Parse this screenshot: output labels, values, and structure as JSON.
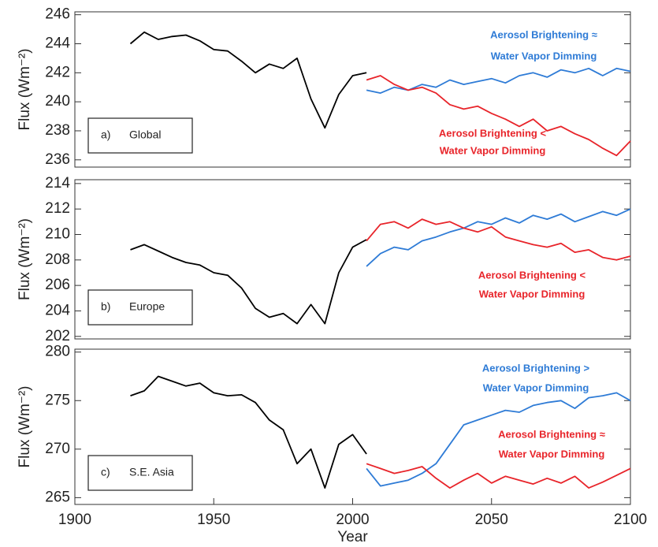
{
  "chart_data": [
    {
      "type": "line",
      "y_label": "Flux (Wm⁻²)",
      "panel_label": "a)",
      "region": "Global",
      "xlim": [
        1900,
        2100
      ],
      "ylim": [
        235.5,
        246.2
      ],
      "yticks": [
        236,
        238,
        240,
        242,
        244,
        246
      ],
      "x": [
        1920,
        1925,
        1930,
        1935,
        1940,
        1945,
        1950,
        1955,
        1960,
        1965,
        1970,
        1975,
        1980,
        1985,
        1990,
        1995,
        2000,
        2005,
        2010,
        2015,
        2020,
        2025,
        2030,
        2035,
        2040,
        2045,
        2050,
        2055,
        2060,
        2065,
        2070,
        2075,
        2080,
        2085,
        2090,
        2095,
        2100
      ],
      "series": [
        {
          "color": "#000000",
          "values": [
            244.0,
            244.8,
            244.3,
            244.5,
            244.6,
            244.2,
            243.6,
            243.5,
            242.8,
            242.0,
            242.6,
            242.3,
            243.0,
            240.2,
            238.2,
            240.5,
            241.8,
            242.0,
            null,
            null,
            null,
            null,
            null,
            null,
            null,
            null,
            null,
            null,
            null,
            null,
            null,
            null,
            null,
            null,
            null,
            null,
            null
          ]
        },
        {
          "color": "#2e7bd6",
          "values": [
            null,
            null,
            null,
            null,
            null,
            null,
            null,
            null,
            null,
            null,
            null,
            null,
            null,
            null,
            null,
            null,
            null,
            240.8,
            240.6,
            241.0,
            240.8,
            241.2,
            241.0,
            241.5,
            241.2,
            241.4,
            241.6,
            241.3,
            241.8,
            242.0,
            241.7,
            242.2,
            242.0,
            242.3,
            241.8,
            242.3,
            242.1
          ]
        },
        {
          "color": "#e8242a",
          "values": [
            null,
            null,
            null,
            null,
            null,
            null,
            null,
            null,
            null,
            null,
            null,
            null,
            null,
            null,
            null,
            null,
            null,
            241.5,
            241.8,
            241.2,
            240.8,
            241.0,
            240.6,
            239.8,
            239.5,
            239.7,
            239.2,
            238.8,
            238.3,
            238.8,
            238.0,
            238.3,
            237.8,
            237.4,
            236.8,
            236.3,
            237.3
          ]
        }
      ],
      "annotations": [
        {
          "text": "Aerosol Brightening ≈",
          "color": "#2e7bd6"
        },
        {
          "text": "Water Vapor Dimming",
          "color": "#2e7bd6"
        },
        {
          "text": "Aerosol Brightening <",
          "color": "#e8242a"
        },
        {
          "text": "Water Vapor Dimming",
          "color": "#e8242a"
        }
      ]
    },
    {
      "type": "line",
      "y_label": "Flux (Wm⁻²)",
      "panel_label": "b)",
      "region": "Europe",
      "xlim": [
        1900,
        2100
      ],
      "ylim": [
        201.8,
        214.3
      ],
      "yticks": [
        202,
        204,
        206,
        208,
        210,
        212,
        214
      ],
      "x": [
        1920,
        1925,
        1930,
        1935,
        1940,
        1945,
        1950,
        1955,
        1960,
        1965,
        1970,
        1975,
        1980,
        1985,
        1990,
        1995,
        2000,
        2005,
        2010,
        2015,
        2020,
        2025,
        2030,
        2035,
        2040,
        2045,
        2050,
        2055,
        2060,
        2065,
        2070,
        2075,
        2080,
        2085,
        2090,
        2095,
        2100
      ],
      "series": [
        {
          "color": "#000000",
          "values": [
            208.8,
            209.2,
            208.7,
            208.2,
            207.8,
            207.6,
            207.0,
            206.8,
            205.8,
            204.2,
            203.5,
            203.8,
            203.0,
            204.5,
            203.0,
            207.0,
            209.0,
            209.6,
            null,
            null,
            null,
            null,
            null,
            null,
            null,
            null,
            null,
            null,
            null,
            null,
            null,
            null,
            null,
            null,
            null,
            null,
            null
          ]
        },
        {
          "color": "#2e7bd6",
          "values": [
            null,
            null,
            null,
            null,
            null,
            null,
            null,
            null,
            null,
            null,
            null,
            null,
            null,
            null,
            null,
            null,
            null,
            207.5,
            208.5,
            209.0,
            208.8,
            209.5,
            209.8,
            210.2,
            210.5,
            211.0,
            210.8,
            211.3,
            210.9,
            211.5,
            211.2,
            211.6,
            211.0,
            211.4,
            211.8,
            211.5,
            212.0
          ]
        },
        {
          "color": "#e8242a",
          "values": [
            null,
            null,
            null,
            null,
            null,
            null,
            null,
            null,
            null,
            null,
            null,
            null,
            null,
            null,
            null,
            null,
            null,
            209.5,
            210.8,
            211.0,
            210.5,
            211.2,
            210.8,
            211.0,
            210.5,
            210.2,
            210.6,
            209.8,
            209.5,
            209.2,
            209.0,
            209.3,
            208.6,
            208.8,
            208.2,
            208.0,
            208.3
          ]
        }
      ],
      "annotations": [
        {
          "text": "Aerosol Brightening <",
          "color": "#e8242a"
        },
        {
          "text": "Water Vapor Dimming",
          "color": "#e8242a"
        }
      ]
    },
    {
      "type": "line",
      "y_label": "Flux (Wm⁻²)",
      "panel_label": "c)",
      "region": "S.E. Asia",
      "x_label": "Year",
      "xlim": [
        1900,
        2100
      ],
      "xticks": [
        1900,
        1950,
        2000,
        2050,
        2100
      ],
      "ylim": [
        264.3,
        280.3
      ],
      "yticks": [
        265,
        270,
        275,
        280
      ],
      "x": [
        1920,
        1925,
        1930,
        1935,
        1940,
        1945,
        1950,
        1955,
        1960,
        1965,
        1970,
        1975,
        1980,
        1985,
        1990,
        1995,
        2000,
        2005,
        2010,
        2015,
        2020,
        2025,
        2030,
        2035,
        2040,
        2045,
        2050,
        2055,
        2060,
        2065,
        2070,
        2075,
        2080,
        2085,
        2090,
        2095,
        2100
      ],
      "series": [
        {
          "color": "#000000",
          "values": [
            275.5,
            276.0,
            277.5,
            277.0,
            276.5,
            276.8,
            275.8,
            275.5,
            275.6,
            274.8,
            273.0,
            272.0,
            268.5,
            270.0,
            266.0,
            270.5,
            271.5,
            269.5,
            null,
            null,
            null,
            null,
            null,
            null,
            null,
            null,
            null,
            null,
            null,
            null,
            null,
            null,
            null,
            null,
            null,
            null,
            null
          ]
        },
        {
          "color": "#2e7bd6",
          "values": [
            null,
            null,
            null,
            null,
            null,
            null,
            null,
            null,
            null,
            null,
            null,
            null,
            null,
            null,
            null,
            null,
            null,
            268.0,
            266.2,
            266.5,
            266.8,
            267.5,
            268.5,
            270.5,
            272.5,
            273.0,
            273.5,
            274.0,
            273.8,
            274.5,
            274.8,
            275.0,
            274.2,
            275.3,
            275.5,
            275.8,
            275.0
          ]
        },
        {
          "color": "#e8242a",
          "values": [
            null,
            null,
            null,
            null,
            null,
            null,
            null,
            null,
            null,
            null,
            null,
            null,
            null,
            null,
            null,
            null,
            null,
            268.5,
            268.0,
            267.5,
            267.8,
            268.2,
            267.0,
            266.0,
            266.8,
            267.5,
            266.5,
            267.2,
            266.8,
            266.4,
            267.0,
            266.5,
            267.2,
            266.0,
            266.6,
            267.3,
            268.0
          ]
        }
      ],
      "annotations": [
        {
          "text": "Aerosol Brightening >",
          "color": "#2e7bd6"
        },
        {
          "text": "Water Vapor Dimming",
          "color": "#2e7bd6"
        },
        {
          "text": "Aerosol Brightening ≈",
          "color": "#e8242a"
        },
        {
          "text": "Water Vapor Dimming",
          "color": "#e8242a"
        }
      ]
    }
  ]
}
